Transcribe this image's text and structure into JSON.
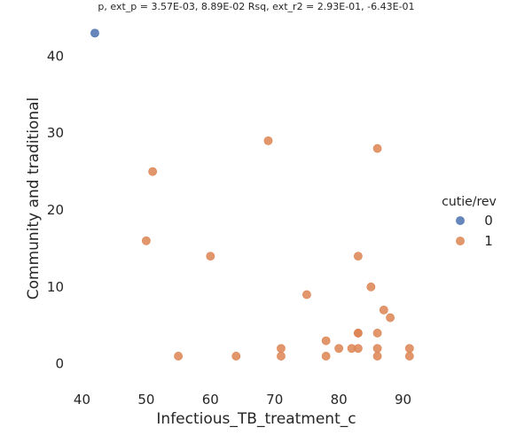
{
  "chart_data": {
    "type": "scatter",
    "title": "p, ext_p = 3.57E-03, 8.89E-02 Rsq, ext_r2 = 2.93E-01, -6.43E-01",
    "xlabel": "Infectious_TB_treatment_c",
    "ylabel": "Community and traditional",
    "xlim": [
      38,
      96
    ],
    "ylim": [
      -2,
      45
    ],
    "xticks": [
      "40",
      "50",
      "60",
      "70",
      "80",
      "90"
    ],
    "yticks": [
      "0",
      "10",
      "20",
      "30",
      "40"
    ],
    "grid": false,
    "legend": {
      "title": "cutie/rev",
      "placement": "right",
      "entries": [
        "0",
        "1"
      ]
    },
    "series": [
      {
        "name": "0",
        "color": "#4c72b0",
        "points": [
          [
            42,
            43
          ]
        ]
      },
      {
        "name": "1",
        "color": "#dd8452",
        "points": [
          [
            69,
            29
          ],
          [
            86,
            28
          ],
          [
            51,
            25
          ],
          [
            50,
            16
          ],
          [
            60,
            14
          ],
          [
            83,
            14
          ],
          [
            85,
            10
          ],
          [
            75,
            9
          ],
          [
            87,
            7
          ],
          [
            88,
            6
          ],
          [
            83,
            4
          ],
          [
            83,
            4
          ],
          [
            86,
            4
          ],
          [
            78,
            3
          ],
          [
            71,
            2
          ],
          [
            80,
            2
          ],
          [
            82,
            2
          ],
          [
            83,
            2
          ],
          [
            86,
            2
          ],
          [
            91,
            2
          ],
          [
            55,
            1
          ],
          [
            64,
            1
          ],
          [
            71,
            1
          ],
          [
            78,
            1
          ],
          [
            86,
            1
          ],
          [
            91,
            1
          ]
        ]
      }
    ]
  }
}
